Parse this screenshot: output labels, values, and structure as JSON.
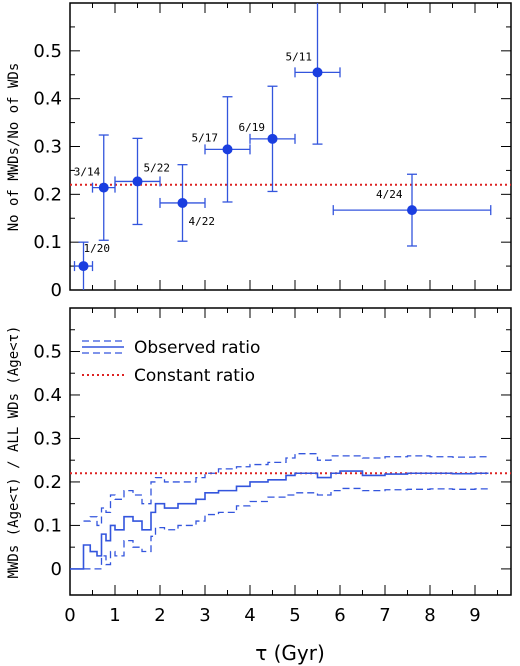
{
  "chart_data": [
    {
      "type": "scatter",
      "ylabel": "No of MWDs/No of WDs",
      "xlim": [
        0,
        9.8
      ],
      "ylim": [
        0,
        0.6
      ],
      "y_ticks": [
        "0",
        "0.1",
        "0.2",
        "0.3",
        "0.4",
        "0.5"
      ],
      "constant_ratio": 0.22,
      "points": [
        {
          "x": 0.3,
          "y": 0.05,
          "xerr": 0.2,
          "yerr_low": 0.05,
          "yerr_high": 0.05,
          "label": "1/20"
        },
        {
          "x": 0.75,
          "y": 0.214,
          "xerr": 0.25,
          "yerr_low": 0.11,
          "yerr_high": 0.11,
          "label": "3/14"
        },
        {
          "x": 1.5,
          "y": 0.227,
          "xerr": 0.5,
          "yerr_low": 0.09,
          "yerr_high": 0.09,
          "label": "5/22"
        },
        {
          "x": 2.5,
          "y": 0.182,
          "xerr": 0.5,
          "yerr_low": 0.08,
          "yerr_high": 0.08,
          "label": "4/22"
        },
        {
          "x": 3.5,
          "y": 0.294,
          "xerr": 0.5,
          "yerr_low": 0.11,
          "yerr_high": 0.11,
          "label": "5/17"
        },
        {
          "x": 4.5,
          "y": 0.316,
          "xerr": 0.5,
          "yerr_low": 0.11,
          "yerr_high": 0.11,
          "label": "6/19"
        },
        {
          "x": 5.5,
          "y": 0.455,
          "xerr": 0.5,
          "yerr_low": 0.15,
          "yerr_high": 0.15,
          "label": "5/11"
        },
        {
          "x": 7.6,
          "y": 0.167,
          "xerr": 1.75,
          "yerr_low": 0.075,
          "yerr_high": 0.075,
          "label": "4/24"
        }
      ]
    },
    {
      "type": "line",
      "ylabel": "MWDs (Age<τ) / ALL WDs (Age<τ)",
      "xlabel": "τ (Gyr)",
      "xlim": [
        0,
        9.8
      ],
      "ylim": [
        -0.06,
        0.6
      ],
      "x_ticks": [
        "0",
        "1",
        "2",
        "3",
        "4",
        "5",
        "6",
        "7",
        "8",
        "9"
      ],
      "y_ticks": [
        "0",
        "0.1",
        "0.2",
        "0.3",
        "0.4",
        "0.5"
      ],
      "legend": [
        {
          "label": "Observed ratio",
          "color": "#3355dd",
          "style": "solid-with-dashed-band"
        },
        {
          "label": "Constant ratio",
          "color": "#dd2222",
          "style": "dotted"
        }
      ],
      "constant_ratio": 0.22,
      "series": [
        {
          "name": "Observed ratio",
          "x": [
            0,
            0.2,
            0.3,
            0.45,
            0.6,
            0.7,
            0.8,
            0.9,
            1.0,
            1.2,
            1.4,
            1.6,
            1.8,
            1.9,
            2.1,
            2.4,
            2.8,
            3.0,
            3.3,
            3.7,
            4.0,
            4.4,
            4.8,
            5.0,
            5.5,
            5.8,
            6.0,
            6.5,
            7.0,
            7.5,
            8.0,
            8.5,
            9.0,
            9.3
          ],
          "y": [
            0,
            0,
            0.055,
            0.04,
            0.03,
            0.08,
            0.065,
            0.1,
            0.09,
            0.12,
            0.11,
            0.09,
            0.13,
            0.15,
            0.14,
            0.15,
            0.16,
            0.175,
            0.18,
            0.19,
            0.2,
            0.205,
            0.215,
            0.22,
            0.21,
            0.22,
            0.225,
            0.215,
            0.218,
            0.22,
            0.22,
            0.219,
            0.22,
            0.22
          ]
        },
        {
          "name": "Upper bound",
          "x": [
            0.3,
            0.45,
            0.6,
            0.7,
            0.8,
            0.9,
            1.0,
            1.2,
            1.4,
            1.6,
            1.8,
            1.9,
            2.1,
            2.4,
            2.8,
            3.0,
            3.3,
            3.7,
            4.0,
            4.4,
            4.8,
            5.0,
            5.5,
            5.8,
            6.0,
            6.5,
            7.0,
            7.5,
            8.0,
            8.5,
            9.0,
            9.3
          ],
          "y": [
            0.11,
            0.12,
            0.1,
            0.14,
            0.13,
            0.17,
            0.16,
            0.18,
            0.17,
            0.15,
            0.2,
            0.21,
            0.2,
            0.2,
            0.21,
            0.22,
            0.23,
            0.235,
            0.24,
            0.245,
            0.255,
            0.265,
            0.25,
            0.26,
            0.26,
            0.255,
            0.258,
            0.26,
            0.258,
            0.257,
            0.258,
            0.257
          ]
        },
        {
          "name": "Lower bound",
          "x": [
            0.3,
            0.45,
            0.6,
            0.7,
            0.8,
            0.9,
            1.0,
            1.2,
            1.4,
            1.6,
            1.8,
            1.9,
            2.1,
            2.4,
            2.8,
            3.0,
            3.3,
            3.7,
            4.0,
            4.4,
            4.8,
            5.0,
            5.5,
            5.8,
            6.0,
            6.5,
            7.0,
            7.5,
            8.0,
            8.5,
            9.0,
            9.3
          ],
          "y": [
            0.0,
            0.0,
            0.0,
            0.03,
            0.01,
            0.04,
            0.03,
            0.065,
            0.05,
            0.04,
            0.075,
            0.095,
            0.09,
            0.1,
            0.11,
            0.125,
            0.13,
            0.145,
            0.155,
            0.165,
            0.17,
            0.175,
            0.17,
            0.18,
            0.185,
            0.18,
            0.182,
            0.183,
            0.184,
            0.183,
            0.184,
            0.185
          ]
        }
      ]
    }
  ]
}
